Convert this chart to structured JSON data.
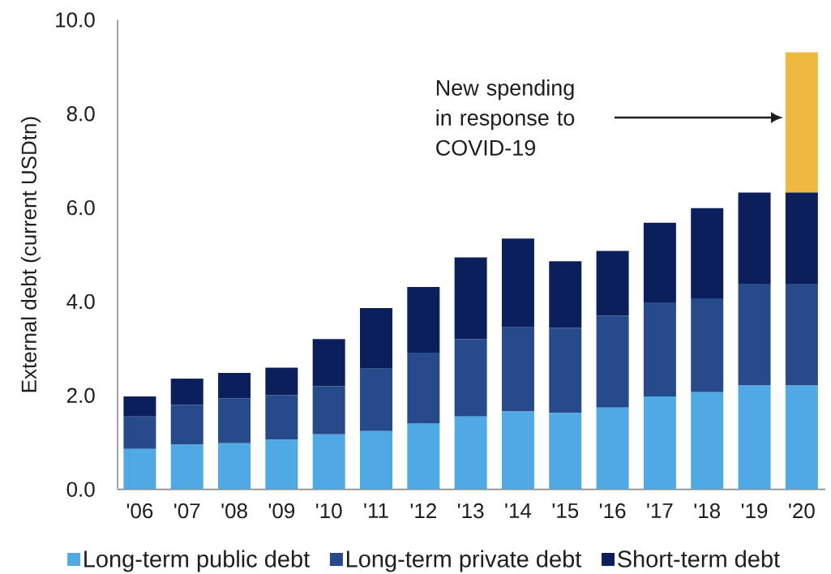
{
  "chart_data": {
    "type": "bar",
    "stacked": true,
    "categories": [
      "'06",
      "'07",
      "'08",
      "'09",
      "'10",
      "'11",
      "'12",
      "'13",
      "'14",
      "'15",
      "'16",
      "'17",
      "'18",
      "'19",
      "'20"
    ],
    "series": [
      {
        "name": "Long-term public debt",
        "color": "#4FA9E5",
        "values": [
          0.86,
          0.95,
          0.98,
          1.06,
          1.17,
          1.24,
          1.41,
          1.55,
          1.66,
          1.63,
          1.74,
          1.98,
          2.07,
          2.21,
          2.21
        ]
      },
      {
        "name": "Long-term private debt",
        "color": "#274A8A",
        "values": [
          0.69,
          0.85,
          0.96,
          0.95,
          1.03,
          1.33,
          1.5,
          1.65,
          1.79,
          1.81,
          1.96,
          2.0,
          2.0,
          2.17,
          2.17
        ]
      },
      {
        "name": "Short-term debt",
        "color": "#0A1F5C",
        "values": [
          0.43,
          0.56,
          0.54,
          0.58,
          1.0,
          1.29,
          1.4,
          1.74,
          1.89,
          1.42,
          1.38,
          1.7,
          1.92,
          1.94,
          1.94
        ]
      },
      {
        "color": "#EFB941",
        "values": [
          null,
          null,
          null,
          null,
          null,
          null,
          null,
          null,
          null,
          null,
          null,
          null,
          null,
          null,
          2.99
        ]
      }
    ],
    "ylabel": "External debt (current USDtn)",
    "ylim": [
      0,
      10
    ],
    "yticks": [
      {
        "value": 0,
        "label": "0.0"
      },
      {
        "value": 2,
        "label": "2.0"
      },
      {
        "value": 4,
        "label": "4.0"
      },
      {
        "value": 6,
        "label": "6.0"
      },
      {
        "value": 8,
        "label": "8.0"
      },
      {
        "value": 10,
        "label": "10.0"
      }
    ],
    "annotations": [
      "New spending in response to COVID-19"
    ],
    "legend": "bottom"
  }
}
